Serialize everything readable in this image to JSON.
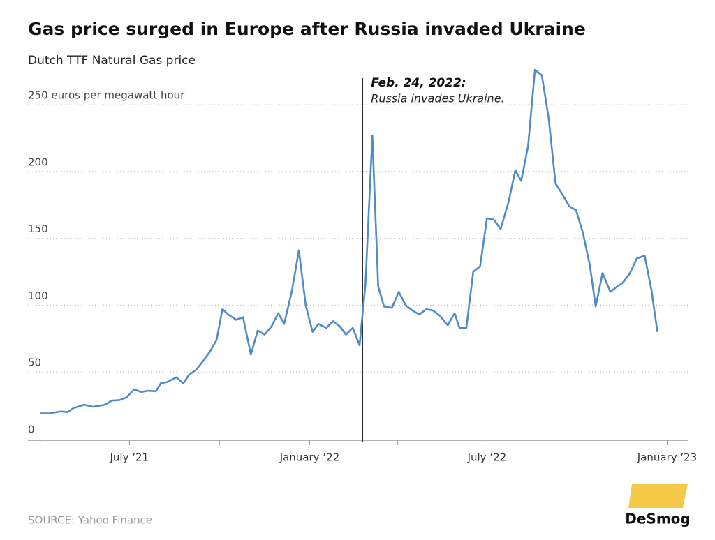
{
  "chart_data": {
    "type": "line",
    "title": "Gas price surged in Europe after Russia invaded Ukraine",
    "subtitle": "Dutch TTF Natural Gas price",
    "source": "SOURCE: Yahoo Finance",
    "logo": "DeSmog",
    "x": [
      0,
      9,
      13,
      21,
      28,
      34,
      45,
      54,
      66,
      73,
      81,
      88,
      96,
      103,
      110,
      118,
      123,
      130,
      139,
      146,
      152,
      159,
      166,
      173,
      180,
      186,
      192,
      200,
      207,
      215,
      222,
      229,
      236,
      243,
      249,
      257,
      264,
      271,
      278,
      284,
      292,
      299,
      306,
      312,
      319,
      326,
      332,
      339,
      345,
      351,
      359,
      366,
      373,
      380,
      387,
      394,
      401,
      408,
      416,
      423,
      428,
      435,
      442,
      449,
      456,
      463,
      470,
      478,
      485,
      491,
      498,
      505,
      512,
      519,
      526,
      533,
      540,
      547,
      554,
      561,
      567,
      574,
      582,
      589,
      595,
      602,
      609,
      617,
      624,
      630
    ],
    "series": [
      {
        "color": "#4f8bc4",
        "values": [
          19,
          19,
          19.5,
          20.5,
          20,
          23,
          25.5,
          24,
          25.5,
          28.6,
          29,
          31,
          37,
          35,
          36,
          35.5,
          41.5,
          42.6,
          46,
          41.5,
          48,
          51.5,
          58,
          65,
          74,
          97,
          93,
          89,
          91,
          63,
          81,
          78,
          84,
          94,
          86,
          111,
          141,
          100,
          80,
          86,
          83,
          88,
          84,
          78,
          83,
          70,
          116,
          227,
          114,
          99,
          98,
          110,
          100,
          96,
          93,
          97,
          96,
          92,
          85,
          94,
          83,
          83,
          125,
          129,
          165,
          164,
          157,
          177,
          201,
          193,
          219,
          276,
          272,
          240,
          191,
          183,
          174,
          171,
          154,
          130,
          99,
          124,
          110,
          114,
          117,
          124,
          135,
          137,
          111,
          80
        ]
      }
    ],
    "xlim": [
      -9,
      661
    ],
    "xticks": [
      {
        "value": 91,
        "label": "July ’21"
      },
      {
        "value": 275,
        "label": "January ’22"
      },
      {
        "value": 456,
        "label": "July ’22"
      },
      {
        "value": 640,
        "label": "January ’23"
      }
    ],
    "xminor_ticks": [
      0,
      183,
      365,
      548
    ],
    "ylim": [
      0,
      250
    ],
    "yticks": [
      0,
      50,
      100,
      150,
      200,
      {
        "value": 250,
        "label": "250 euros per megawatt hour"
      }
    ],
    "grid": true,
    "annotation": {
      "x": 329,
      "label": "Feb. 24, 2022:",
      "text": "Russia invades Ukraine."
    }
  }
}
